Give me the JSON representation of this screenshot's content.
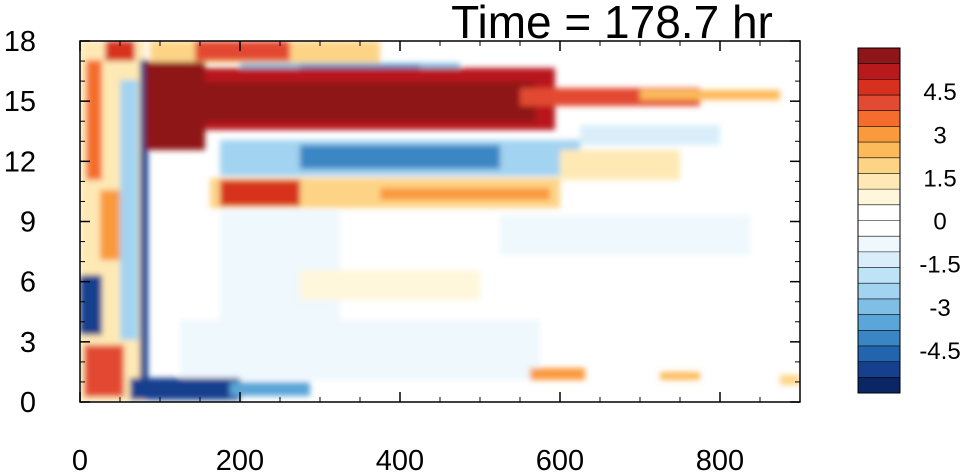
{
  "chart_data": {
    "type": "heatmap",
    "title": "Time = 178.7 hr",
    "xlabel": "",
    "ylabel": "",
    "xlim": [
      0,
      900
    ],
    "ylim": [
      0,
      18
    ],
    "x_ticks": [
      "0",
      "200",
      "400",
      "600",
      "800"
    ],
    "y_ticks": [
      "0",
      "3",
      "6",
      "9",
      "12",
      "15",
      "18"
    ],
    "colorbar": {
      "range": [
        -6,
        6
      ],
      "labels": [
        "4.5",
        "3",
        "1.5",
        "0",
        "-1.5",
        "-3",
        "-4.5"
      ],
      "colors": [
        "#8e1518",
        "#b8191d",
        "#d7301f",
        "#e34a33",
        "#f46d2c",
        "#f99a3c",
        "#fdba5a",
        "#fdd486",
        "#fee9b4",
        "#fff7dc",
        "#ffffff",
        "#ffffff",
        "#eef8fd",
        "#d9eefa",
        "#bfe3f6",
        "#a2d3f0",
        "#7fbfe6",
        "#5aa6d8",
        "#3a86c4",
        "#2264ad",
        "#163f8e",
        "#0b2664"
      ]
    },
    "features": [
      {
        "desc": "strong positive band",
        "x": [
          75,
          560
        ],
        "y": [
          13.8,
          16.8
        ],
        "value": 6
      },
      {
        "desc": "positive band continuation",
        "x": [
          560,
          800
        ],
        "y": [
          14.8,
          15.8
        ],
        "value": 3
      },
      {
        "desc": "negative band",
        "x": [
          180,
          560
        ],
        "y": [
          11.5,
          13.5
        ],
        "value": -3.5
      },
      {
        "desc": "positive band",
        "x": [
          200,
          560
        ],
        "y": [
          9.8,
          11.2
        ],
        "value": 4
      },
      {
        "desc": "negative band near top",
        "x": [
          220,
          480
        ],
        "y": [
          16.2,
          17.0
        ],
        "value": -2.5
      },
      {
        "desc": "negative near bottom",
        "x": [
          70,
          250
        ],
        "y": [
          0.1,
          1.0
        ],
        "value": -6
      },
      {
        "desc": "negative blob left",
        "x": [
          0,
          40
        ],
        "y": [
          3.8,
          6.2
        ],
        "value": -5.5
      }
    ]
  }
}
